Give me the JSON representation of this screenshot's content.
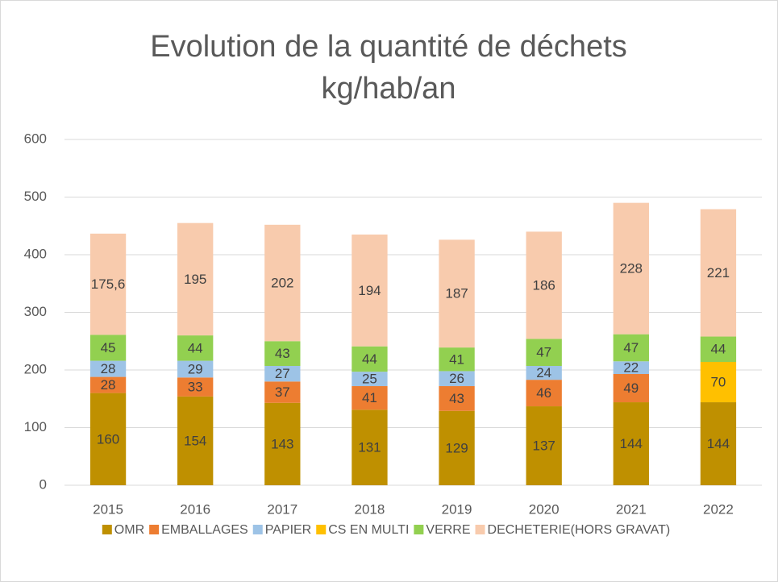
{
  "chart_data": {
    "type": "stacked_bar",
    "title": "Evolution de la quantité de déchets",
    "subtitle": "kg/hab/an",
    "categories": [
      "2015",
      "2016",
      "2017",
      "2018",
      "2019",
      "2020",
      "2021",
      "2022"
    ],
    "series": [
      {
        "name": "OMR",
        "color": "#bf9000",
        "values": [
          160,
          154,
          143,
          131,
          129,
          137,
          144,
          144
        ]
      },
      {
        "name": "EMBALLAGES",
        "color": "#ed7d31",
        "values": [
          28,
          33,
          37,
          41,
          43,
          46,
          49,
          null
        ]
      },
      {
        "name": "PAPIER",
        "color": "#9dc3e6",
        "values": [
          28,
          29,
          27,
          25,
          26,
          24,
          22,
          null
        ]
      },
      {
        "name": "CS EN MULTI",
        "color": "#ffc000",
        "values": [
          null,
          null,
          null,
          null,
          null,
          null,
          null,
          70
        ]
      },
      {
        "name": "VERRE",
        "color": "#92d050",
        "values": [
          45,
          44,
          43,
          44,
          41,
          47,
          47,
          44
        ]
      },
      {
        "name": "DECHETERIE(HORS GRAVAT)",
        "color": "#f8cbad",
        "values": [
          175.6,
          195,
          202,
          194,
          187,
          186,
          228,
          221
        ],
        "value_labels": [
          "175,6",
          "195",
          "202",
          "194",
          "187",
          "186",
          "228",
          "221"
        ]
      }
    ],
    "ylim": [
      0,
      600
    ],
    "yticks": [
      0,
      100,
      200,
      300,
      400,
      500,
      600
    ],
    "grid": true,
    "legend": "bottom"
  }
}
